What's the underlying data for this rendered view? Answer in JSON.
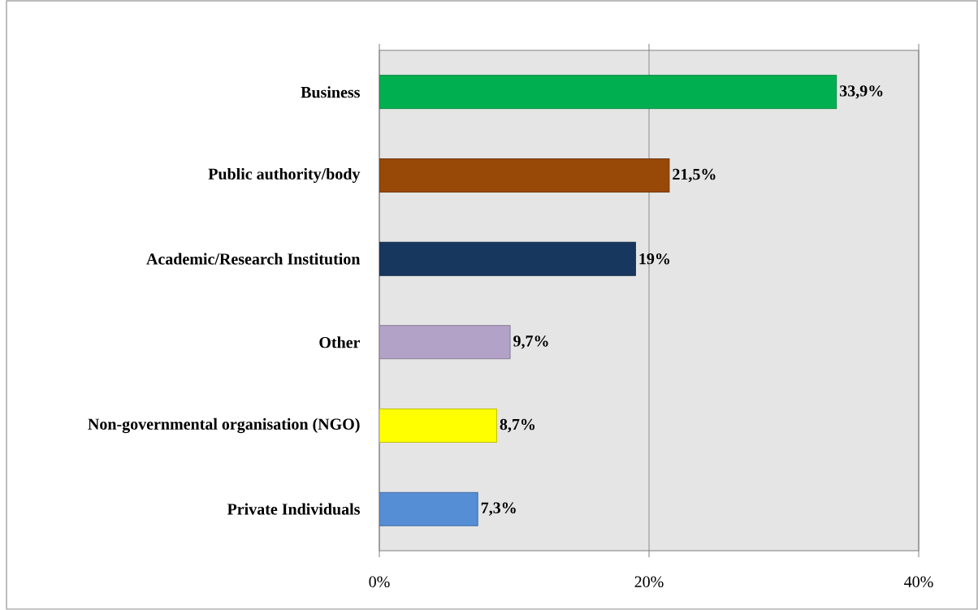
{
  "chart_data": {
    "type": "bar",
    "orientation": "horizontal",
    "categories": [
      "Business",
      "Public authority/body",
      "Academic/Research Institution",
      "Other",
      "Non-governmental organisation (NGO)",
      "Private Individuals"
    ],
    "values": [
      33.9,
      21.5,
      19,
      9.7,
      8.7,
      7.3
    ],
    "colors": [
      "#00b050",
      "#984807",
      "#17375e",
      "#b3a2c7",
      "#ffff00",
      "#558ed5"
    ],
    "value_labels": [
      "33,9%",
      "21,5%",
      "19%",
      "9,7%",
      "8,7%",
      "7,3%"
    ],
    "xlim": [
      0,
      40
    ],
    "xticks": [
      {
        "value": 0,
        "label": "0%"
      },
      {
        "value": 20,
        "label": "20%"
      },
      {
        "value": 40,
        "label": "40%"
      }
    ],
    "grid": "x"
  }
}
